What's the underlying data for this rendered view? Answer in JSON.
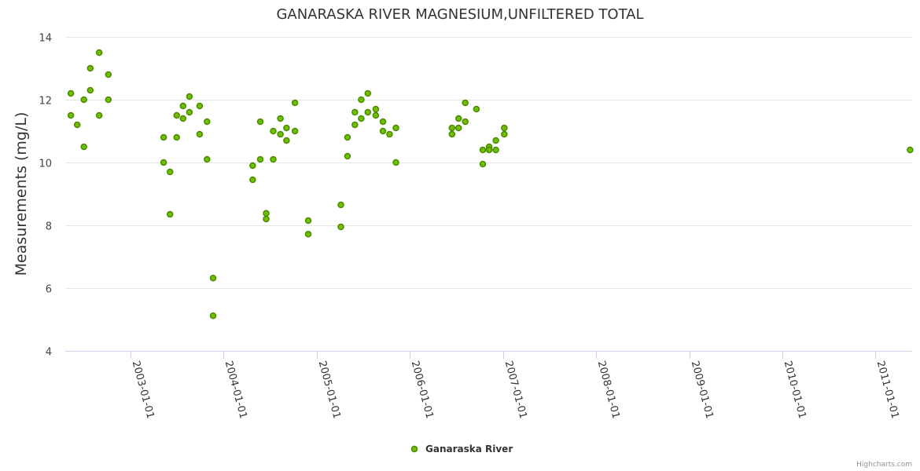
{
  "chart_data": {
    "type": "scatter",
    "title": "GANARASKA RIVER MAGNESIUM,UNFILTERED TOTAL",
    "ylabel": "Measurements (mg/L)",
    "xlabel": "",
    "ylim": [
      4,
      14
    ],
    "yticks": [
      4,
      6,
      8,
      10,
      12,
      14
    ],
    "x_axis_type": "datetime",
    "xlim": [
      "2002-04-20",
      "2011-05-25"
    ],
    "xticks": [
      "2003-01-01",
      "2004-01-01",
      "2005-01-01",
      "2006-01-01",
      "2007-01-01",
      "2008-01-01",
      "2009-01-01",
      "2010-01-01",
      "2011-01-01"
    ],
    "grid": true,
    "legend": {
      "position": "bottom-center"
    },
    "credits": "Highcharts.com",
    "series": [
      {
        "name": "Ganaraska River",
        "color": "#6fbf00",
        "points": [
          [
            "2002-05-12",
            12.2
          ],
          [
            "2002-05-12",
            11.5
          ],
          [
            "2002-06-06",
            11.2
          ],
          [
            "2002-07-02",
            12.0
          ],
          [
            "2002-07-02",
            10.5
          ],
          [
            "2002-07-27",
            13.0
          ],
          [
            "2002-07-27",
            12.3
          ],
          [
            "2002-08-31",
            13.5
          ],
          [
            "2002-08-31",
            11.5
          ],
          [
            "2002-10-06",
            12.8
          ],
          [
            "2002-10-06",
            12.0
          ],
          [
            "2003-05-11",
            10.8
          ],
          [
            "2003-05-11",
            10.0
          ],
          [
            "2003-06-05",
            9.7
          ],
          [
            "2003-06-05",
            8.35
          ],
          [
            "2003-07-01",
            11.5
          ],
          [
            "2003-07-01",
            10.8
          ],
          [
            "2003-07-26",
            11.8
          ],
          [
            "2003-07-26",
            11.4
          ],
          [
            "2003-08-20",
            12.1
          ],
          [
            "2003-08-20",
            11.6
          ],
          [
            "2003-09-29",
            11.8
          ],
          [
            "2003-09-29",
            10.9
          ],
          [
            "2003-10-28",
            11.3
          ],
          [
            "2003-10-28",
            10.1
          ],
          [
            "2003-11-21",
            6.32
          ],
          [
            "2003-11-21",
            5.12
          ],
          [
            "2004-04-24",
            9.9
          ],
          [
            "2004-04-24",
            9.45
          ],
          [
            "2004-05-24",
            11.3
          ],
          [
            "2004-05-24",
            10.1
          ],
          [
            "2004-06-16",
            8.38
          ],
          [
            "2004-06-16",
            8.2
          ],
          [
            "2004-07-14",
            11.0
          ],
          [
            "2004-07-14",
            10.1
          ],
          [
            "2004-08-11",
            11.4
          ],
          [
            "2004-08-11",
            10.9
          ],
          [
            "2004-09-04",
            11.1
          ],
          [
            "2004-09-04",
            10.7
          ],
          [
            "2004-10-07",
            11.9
          ],
          [
            "2004-10-07",
            11.0
          ],
          [
            "2004-11-28",
            8.15
          ],
          [
            "2004-11-28",
            7.72
          ],
          [
            "2005-04-05",
            8.65
          ],
          [
            "2005-04-05",
            7.95
          ],
          [
            "2005-05-01",
            10.8
          ],
          [
            "2005-05-01",
            10.2
          ],
          [
            "2005-05-30",
            11.6
          ],
          [
            "2005-05-30",
            11.2
          ],
          [
            "2005-06-24",
            12.0
          ],
          [
            "2005-06-24",
            11.4
          ],
          [
            "2005-07-20",
            12.2
          ],
          [
            "2005-07-20",
            11.6
          ],
          [
            "2005-08-20",
            11.7
          ],
          [
            "2005-08-20",
            11.5
          ],
          [
            "2005-09-17",
            11.3
          ],
          [
            "2005-09-17",
            11.0
          ],
          [
            "2005-10-13",
            10.9
          ],
          [
            "2005-11-07",
            11.1
          ],
          [
            "2005-11-07",
            10.0
          ],
          [
            "2006-06-15",
            11.1
          ],
          [
            "2006-06-15",
            10.9
          ],
          [
            "2006-07-11",
            11.4
          ],
          [
            "2006-07-11",
            11.1
          ],
          [
            "2006-08-06",
            11.9
          ],
          [
            "2006-08-06",
            11.3
          ],
          [
            "2006-09-19",
            11.7
          ],
          [
            "2006-10-14",
            10.4
          ],
          [
            "2006-10-14",
            9.95
          ],
          [
            "2006-11-08",
            10.5
          ],
          [
            "2006-11-08",
            10.4
          ],
          [
            "2006-12-04",
            10.7
          ],
          [
            "2006-12-04",
            10.4
          ],
          [
            "2007-01-06",
            11.1
          ],
          [
            "2007-01-06",
            10.9
          ],
          [
            "2011-05-17",
            10.4
          ]
        ]
      }
    ]
  }
}
